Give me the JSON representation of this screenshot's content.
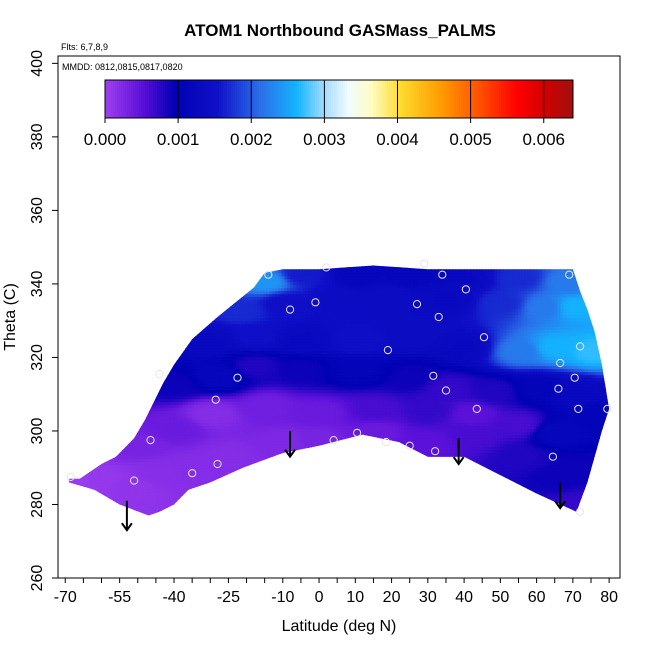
{
  "chart_data": {
    "type": "heatmap",
    "title": "ATOM1 Northbound GASMass_PALMS",
    "annotation_flights": "Flts: 6,7,8,9",
    "annotation_dates": "MMDD: 0812,0815,0817,0820",
    "xlabel": "Latitude (deg N)",
    "ylabel": "Theta (C)",
    "xlim": [
      -72,
      83
    ],
    "ylim": [
      260,
      402
    ],
    "x_ticks": [
      {
        "v": -70,
        "label": "-70"
      },
      {
        "v": -55,
        "label": "-55"
      },
      {
        "v": -40,
        "label": "-40"
      },
      {
        "v": -25,
        "label": "-25"
      },
      {
        "v": -10,
        "label": "-10"
      },
      {
        "v": 0,
        "label": "0"
      },
      {
        "v": 10,
        "label": "10"
      },
      {
        "v": 20,
        "label": "20"
      },
      {
        "v": 30,
        "label": "30"
      },
      {
        "v": 40,
        "label": "40"
      },
      {
        "v": 50,
        "label": "50"
      },
      {
        "v": 60,
        "label": "60"
      },
      {
        "v": 70,
        "label": "70"
      },
      {
        "v": 80,
        "label": "80"
      }
    ],
    "y_ticks": [
      {
        "v": 260,
        "label": "260"
      },
      {
        "v": 280,
        "label": "280"
      },
      {
        "v": 300,
        "label": "300"
      },
      {
        "v": 320,
        "label": "320"
      },
      {
        "v": 340,
        "label": "340"
      },
      {
        "v": 360,
        "label": "360"
      },
      {
        "v": 380,
        "label": "380"
      },
      {
        "v": 400,
        "label": "400"
      }
    ],
    "colorbar": {
      "min": 0.0,
      "max": 0.0064,
      "ticks": [
        {
          "v": 0.0,
          "label": "0.000"
        },
        {
          "v": 0.001,
          "label": "0.001"
        },
        {
          "v": 0.002,
          "label": "0.002"
        },
        {
          "v": 0.003,
          "label": "0.003"
        },
        {
          "v": 0.004,
          "label": "0.004"
        },
        {
          "v": 0.005,
          "label": "0.005"
        },
        {
          "v": 0.006,
          "label": "0.006"
        }
      ],
      "stops": [
        [
          0.0,
          "#a040f0"
        ],
        [
          0.08,
          "#5a10d8"
        ],
        [
          0.15,
          "#0000b4"
        ],
        [
          0.24,
          "#1010c8"
        ],
        [
          0.33,
          "#2a6ee8"
        ],
        [
          0.41,
          "#14b4ff"
        ],
        [
          0.47,
          "#a8dcff"
        ],
        [
          0.52,
          "#f0fcff"
        ],
        [
          0.57,
          "#fffcc0"
        ],
        [
          0.63,
          "#ffdc30"
        ],
        [
          0.72,
          "#ff9a00"
        ],
        [
          0.8,
          "#ff5000"
        ],
        [
          0.88,
          "#ff0000"
        ],
        [
          0.94,
          "#d00000"
        ],
        [
          1.0,
          "#a01010"
        ]
      ]
    },
    "field_outline": [
      [
        -69,
        287
      ],
      [
        -66,
        287
      ],
      [
        -60,
        291
      ],
      [
        -56,
        293
      ],
      [
        -51,
        298
      ],
      [
        -48,
        303
      ],
      [
        -43,
        313
      ],
      [
        -40,
        318
      ],
      [
        -35,
        325
      ],
      [
        -28,
        331
      ],
      [
        -23,
        335
      ],
      [
        -18,
        339
      ],
      [
        -15,
        343
      ],
      [
        -10,
        344
      ],
      [
        0,
        344
      ],
      [
        15,
        345
      ],
      [
        30,
        344
      ],
      [
        50,
        344
      ],
      [
        70,
        344
      ],
      [
        72,
        338
      ],
      [
        74,
        333
      ],
      [
        76,
        327
      ],
      [
        78,
        318
      ],
      [
        80,
        306
      ],
      [
        78,
        300
      ],
      [
        74,
        286
      ],
      [
        71,
        278
      ],
      [
        60,
        283
      ],
      [
        50,
        288
      ],
      [
        40,
        293
      ],
      [
        30,
        293
      ],
      [
        22,
        297
      ],
      [
        12,
        299
      ],
      [
        8,
        298
      ],
      [
        0,
        296
      ],
      [
        -10,
        294
      ],
      [
        -21,
        290
      ],
      [
        -30,
        286
      ],
      [
        -36,
        284
      ],
      [
        -40,
        280
      ],
      [
        -44,
        278
      ],
      [
        -47,
        277
      ],
      [
        -55,
        280
      ],
      [
        -62,
        284
      ],
      [
        -69,
        286
      ]
    ],
    "field_values": [
      [
        -62,
        287,
        8e-05
      ],
      [
        -52,
        285,
        0.00012
      ],
      [
        -45,
        289,
        0.00018
      ],
      [
        -35,
        290,
        0.0002
      ],
      [
        -25,
        293,
        0.0002
      ],
      [
        -10,
        297,
        0.00025
      ],
      [
        0,
        298,
        0.0003
      ],
      [
        15,
        300,
        0.0004
      ],
      [
        30,
        297,
        0.0005
      ],
      [
        42,
        299,
        0.0006
      ],
      [
        55,
        293,
        0.0008
      ],
      [
        65,
        288,
        0.0009
      ],
      [
        -50,
        296,
        0.0003
      ],
      [
        -40,
        301,
        0.0004
      ],
      [
        -30,
        305,
        0.0002
      ],
      [
        -15,
        307,
        0.00035
      ],
      [
        0,
        305,
        0.0004
      ],
      [
        15,
        306,
        0.0006
      ],
      [
        30,
        306,
        0.0007
      ],
      [
        42,
        305,
        0.0005
      ],
      [
        55,
        302,
        0.0006
      ],
      [
        65,
        300,
        0.0012
      ],
      [
        -40,
        313,
        0.0009
      ],
      [
        -28,
        315,
        0.0012
      ],
      [
        -18,
        318,
        0.0008
      ],
      [
        -5,
        317,
        0.0009
      ],
      [
        10,
        317,
        0.0011
      ],
      [
        25,
        315,
        0.0009
      ],
      [
        35,
        312,
        0.0007
      ],
      [
        48,
        311,
        0.0008
      ],
      [
        60,
        312,
        0.0011
      ],
      [
        70,
        311,
        0.0013
      ],
      [
        -30,
        325,
        0.0013
      ],
      [
        -18,
        326,
        0.0015
      ],
      [
        -5,
        325,
        0.0013
      ],
      [
        10,
        325,
        0.0015
      ],
      [
        25,
        326,
        0.0014
      ],
      [
        40,
        323,
        0.0013
      ],
      [
        55,
        322,
        0.0022
      ],
      [
        65,
        323,
        0.0026
      ],
      [
        75,
        322,
        0.0027
      ],
      [
        -22,
        333,
        0.0017
      ],
      [
        -10,
        335,
        0.0015
      ],
      [
        5,
        336,
        0.0014
      ],
      [
        20,
        337,
        0.0014
      ],
      [
        35,
        336,
        0.0013
      ],
      [
        50,
        335,
        0.0017
      ],
      [
        62,
        334,
        0.0022
      ],
      [
        70,
        334,
        0.0026
      ],
      [
        -15,
        341,
        0.0024
      ],
      [
        -5,
        343,
        0.0016
      ],
      [
        10,
        343,
        0.0012
      ],
      [
        25,
        342,
        0.0012
      ],
      [
        40,
        342,
        0.0013
      ],
      [
        55,
        342,
        0.0017
      ],
      [
        68,
        341,
        0.0022
      ],
      [
        78,
        304,
        0.0011
      ],
      [
        75,
        290,
        0.0009
      ],
      [
        72,
        280,
        0.0007
      ],
      [
        -66,
        287,
        5e-05
      ]
    ],
    "observations": [
      [
        -68.5,
        287.5
      ],
      [
        -51,
        286.5
      ],
      [
        -46.5,
        297.5
      ],
      [
        -44,
        315.5
      ],
      [
        -35,
        288.5
      ],
      [
        -28.5,
        308.5
      ],
      [
        -28,
        291
      ],
      [
        -22.5,
        314.5
      ],
      [
        -14,
        342.5
      ],
      [
        -8,
        333
      ],
      [
        -1,
        335
      ],
      [
        2,
        344.5
      ],
      [
        4,
        297.5
      ],
      [
        10.5,
        299.5
      ],
      [
        18.5,
        297
      ],
      [
        19,
        322
      ],
      [
        25,
        296
      ],
      [
        27,
        334.5
      ],
      [
        29,
        345.5
      ],
      [
        31.5,
        315
      ],
      [
        32,
        294.5
      ],
      [
        33,
        331
      ],
      [
        34,
        342.5
      ],
      [
        35,
        311
      ],
      [
        40.5,
        338.5
      ],
      [
        43.5,
        306
      ],
      [
        45.5,
        325.5
      ],
      [
        64.5,
        293
      ],
      [
        66,
        311.5
      ],
      [
        66.5,
        318.5
      ],
      [
        69,
        342.5
      ],
      [
        70.5,
        314.5
      ],
      [
        71.5,
        306
      ],
      [
        72,
        323
      ],
      [
        72,
        278
      ],
      [
        79.5,
        306
      ]
    ],
    "arrows": [
      {
        "x": -53,
        "y_top": 281,
        "y_bottom": 273
      },
      {
        "x": -8,
        "y_top": 300,
        "y_bottom": 293
      },
      {
        "x": 38.5,
        "y_top": 298,
        "y_bottom": 291
      },
      {
        "x": 66.5,
        "y_top": 286,
        "y_bottom": 279
      }
    ]
  }
}
